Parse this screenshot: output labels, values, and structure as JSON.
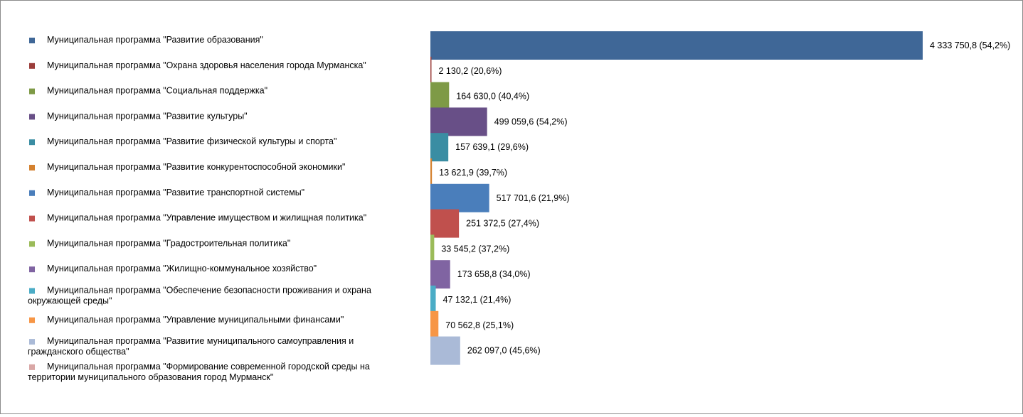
{
  "chart_data": {
    "type": "bar",
    "orientation": "horizontal",
    "legend_position": "left",
    "grid": false,
    "xlim": [
      0,
      4333750.8
    ],
    "series": [
      {
        "name": "Муниципальная программа \"Развитие образования\"",
        "value": 4333750.8,
        "label": "4 333 750,8 (54,2%)",
        "color": "#3F6797"
      },
      {
        "name": "Муниципальная программа \"Охрана здоровья населения города Мурманска\"",
        "value": 2130.2,
        "label": "2 130,2 (20,6%)",
        "color": "#9B3D3A"
      },
      {
        "name": "Муниципальная программа \"Социальная поддержка\"",
        "value": 164630.0,
        "label": "164 630,0 (40,4%)",
        "color": "#7E9A46"
      },
      {
        "name": "Муниципальная программа \"Развитие культуры\"",
        "value": 499059.6,
        "label": "499 059,6 (54,2%)",
        "color": "#684F87"
      },
      {
        "name": "Муниципальная программа \"Развитие физической культуры и спорта\"",
        "value": 157639.1,
        "label": "157 639,1 (29,6%)",
        "color": "#3A8DA3"
      },
      {
        "name": "Муниципальная программа \"Развитие конкурентоспособной экономики\"",
        "value": 13621.9,
        "label": "13 621,9 (39,7%)",
        "color": "#D4812F"
      },
      {
        "name": "Муниципальная программа \"Развитие транспортной системы\"",
        "value": 517701.6,
        "label": "517 701,6 (21,9%)",
        "color": "#4A7EBB"
      },
      {
        "name": "Муниципальная программа \"Управление имуществом и жилищная политика\"",
        "value": 251372.5,
        "label": "251 372,5 (27,4%)",
        "color": "#C0504D"
      },
      {
        "name": "Муниципальная программа \"Градостроительная политика\"",
        "value": 33545.2,
        "label": "33 545,2 (37,2%)",
        "color": "#9BBB59"
      },
      {
        "name": "Муниципальная программа \"Жилищно-коммунальное хозяйство\"",
        "value": 173658.8,
        "label": "173 658,8 (34,0%)",
        "color": "#8064A2"
      },
      {
        "name": "Муниципальная программа \"Обеспечение безопасности проживания и охрана окружающей среды\"",
        "value": 47132.1,
        "label": "47 132,1 (21,4%)",
        "color": "#4BACC6"
      },
      {
        "name": "Муниципальная программа \"Управление муниципальными финансами\"",
        "value": 70562.8,
        "label": "70 562,8 (25,1%)",
        "color": "#F79646"
      },
      {
        "name": "Муниципальная программа \"Развитие муниципального самоуправления и гражданского общества\"",
        "value": 262097.0,
        "label": "262 097,0 (45,6%)",
        "color": "#AABAD7"
      },
      {
        "name": "Муниципальная программа \"Формирование современной городской среды на территории муниципального образования город Мурманск\"",
        "value": null,
        "label": "",
        "color": "#D9A7A6"
      }
    ]
  }
}
